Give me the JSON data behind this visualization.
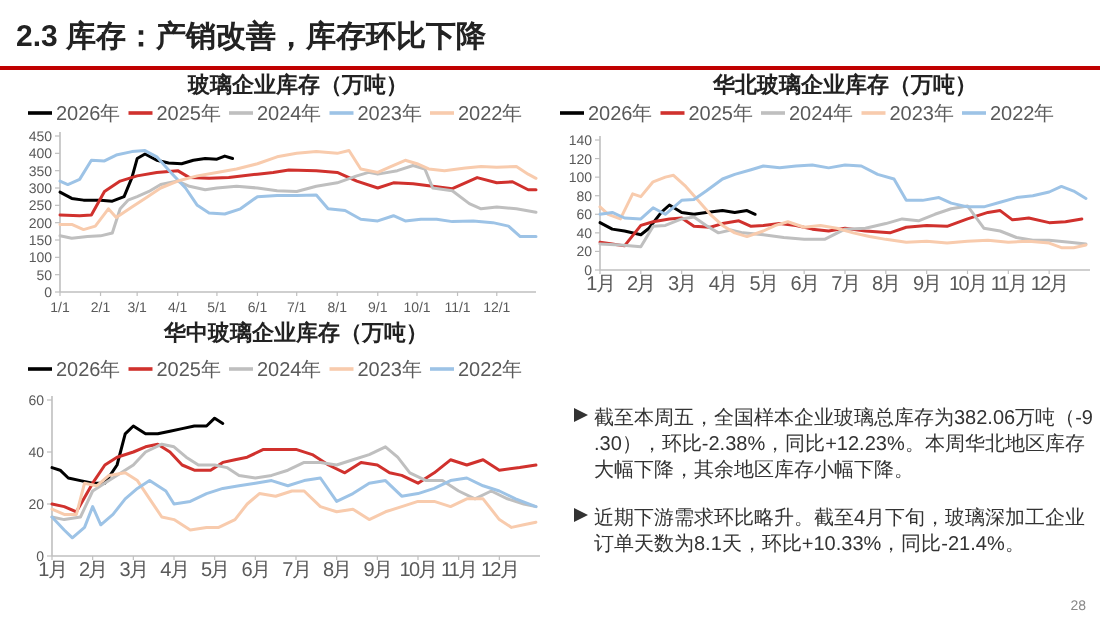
{
  "chart_data": [
    {
      "type": "line",
      "title": "玻璃企业库存（万吨）",
      "legend": "top",
      "grid": false,
      "xlim": [
        "--01-01",
        "--12-31"
      ],
      "xticks": [
        {
          "value": "--01-01",
          "label": "1/1"
        },
        {
          "value": "--02-01",
          "label": "2/1"
        },
        {
          "value": "--03-01",
          "label": "3/1"
        },
        {
          "value": "--04-01",
          "label": "4/1"
        },
        {
          "value": "--05-01",
          "label": "5/1"
        },
        {
          "value": "--06-01",
          "label": "6/1"
        },
        {
          "value": "--07-01",
          "label": "7/1"
        },
        {
          "value": "--08-01",
          "label": "8/1"
        },
        {
          "value": "--09-01",
          "label": "9/1"
        },
        {
          "value": "--10-01",
          "label": "10/1"
        },
        {
          "value": "--11-01",
          "label": "11/1"
        },
        {
          "value": "--12-01",
          "label": "12/1"
        }
      ],
      "ylim": [
        0,
        450
      ],
      "yticks": [
        0,
        50,
        100,
        150,
        200,
        250,
        300,
        350,
        400,
        450
      ],
      "series": [
        {
          "name": "2026年",
          "color": "#000000",
          "x": [
            "--01-01",
            "--01-10",
            "--01-19",
            "--02-01",
            "--02-10",
            "--02-19",
            "--02-25",
            "--03-01",
            "--03-07",
            "--03-16",
            "--03-25",
            "--04-04",
            "--04-13",
            "--04-22",
            "--05-01",
            "--05-07",
            "--05-13"
          ],
          "values": [
            288,
            270,
            265,
            265,
            262,
            275,
            330,
            385,
            398,
            380,
            372,
            370,
            380,
            385,
            383,
            392,
            385
          ]
        },
        {
          "name": "2025年",
          "color": "#d0312d",
          "x": [
            "--01-01",
            "--01-16",
            "--01-25",
            "--02-04",
            "--02-16",
            "--03-01",
            "--03-16",
            "--04-01",
            "--04-10",
            "--04-25",
            "--05-10",
            "--06-01",
            "--06-13",
            "--06-25",
            "--07-16",
            "--08-01",
            "--08-16",
            "--09-01",
            "--09-13",
            "--09-28",
            "--10-13",
            "--10-28",
            "--11-10",
            "--11-16",
            "--12-01",
            "--12-13",
            "--12-25",
            "--12-31"
          ],
          "values": [
            222,
            220,
            222,
            290,
            320,
            335,
            345,
            350,
            330,
            328,
            330,
            340,
            345,
            352,
            350,
            345,
            320,
            300,
            315,
            312,
            305,
            298,
            320,
            330,
            315,
            318,
            295,
            295
          ]
        },
        {
          "name": "2024年",
          "color": "#bfbfbf",
          "x": [
            "--01-01",
            "--01-10",
            "--01-22",
            "--02-01",
            "--02-10",
            "--02-16",
            "--02-22",
            "--03-01",
            "--03-10",
            "--03-19",
            "--04-01",
            "--04-10",
            "--04-22",
            "--05-01",
            "--05-16",
            "--06-01",
            "--06-16",
            "--07-01",
            "--07-16",
            "--08-01",
            "--08-16",
            "--08-25",
            "--09-01",
            "--09-16",
            "--09-28",
            "--10-07",
            "--10-13",
            "--10-28",
            "--11-10",
            "--11-19",
            "--12-01",
            "--12-16",
            "--12-31"
          ],
          "values": [
            162,
            155,
            160,
            162,
            170,
            240,
            265,
            275,
            290,
            310,
            320,
            305,
            295,
            300,
            305,
            300,
            292,
            290,
            305,
            315,
            335,
            345,
            340,
            350,
            365,
            355,
            300,
            292,
            255,
            240,
            245,
            240,
            230
          ]
        },
        {
          "name": "2023年",
          "color": "#9dc3e6",
          "x": [
            "--01-01",
            "--01-07",
            "--01-16",
            "--01-25",
            "--02-04",
            "--02-13",
            "--02-25",
            "--03-07",
            "--03-16",
            "--03-28",
            "--04-07",
            "--04-16",
            "--04-25",
            "--05-07",
            "--05-19",
            "--06-01",
            "--06-16",
            "--07-01",
            "--07-16",
            "--07-25",
            "--08-07",
            "--08-19",
            "--09-01",
            "--09-13",
            "--09-22",
            "--10-04",
            "--10-16",
            "--10-28",
            "--11-13",
            "--11-28",
            "--12-10",
            "--12-19",
            "--12-28",
            "--12-31"
          ],
          "values": [
            320,
            310,
            325,
            380,
            378,
            395,
            405,
            408,
            390,
            340,
            300,
            250,
            228,
            225,
            240,
            275,
            278,
            278,
            280,
            240,
            235,
            210,
            205,
            220,
            205,
            210,
            210,
            203,
            205,
            200,
            190,
            160,
            160,
            160
          ]
        },
        {
          "name": "2022年",
          "color": "#f8cbad",
          "x": [
            "--01-01",
            "--01-10",
            "--01-19",
            "--01-28",
            "--02-07",
            "--02-13",
            "--02-25",
            "--03-07",
            "--03-19",
            "--04-01",
            "--04-16",
            "--05-01",
            "--05-16",
            "--06-01",
            "--06-16",
            "--07-01",
            "--07-16",
            "--08-01",
            "--08-10",
            "--08-19",
            "--09-01",
            "--09-10",
            "--09-22",
            "--10-01",
            "--10-10",
            "--10-22",
            "--11-07",
            "--11-19",
            "--12-01",
            "--12-16",
            "--12-25",
            "--12-31"
          ],
          "values": [
            195,
            195,
            180,
            190,
            240,
            215,
            245,
            270,
            300,
            320,
            335,
            345,
            355,
            370,
            390,
            400,
            405,
            400,
            408,
            355,
            345,
            360,
            380,
            370,
            355,
            350,
            358,
            362,
            360,
            362,
            340,
            328
          ]
        }
      ]
    },
    {
      "type": "line",
      "title": "华北玻璃企业库存（万吨）",
      "legend": "top",
      "grid": false,
      "xlim": [
        1,
        13
      ],
      "xticks": [
        {
          "value": 1,
          "label": "1月"
        },
        {
          "value": 2,
          "label": "2月"
        },
        {
          "value": 3,
          "label": "3月"
        },
        {
          "value": 4,
          "label": "4月"
        },
        {
          "value": 5,
          "label": "5月"
        },
        {
          "value": 6,
          "label": "6月"
        },
        {
          "value": 7,
          "label": "7月"
        },
        {
          "value": 8,
          "label": "8月"
        },
        {
          "value": 9,
          "label": "9月"
        },
        {
          "value": 10,
          "label": "10月"
        },
        {
          "value": 11,
          "label": "11月"
        },
        {
          "value": 12,
          "label": "12月"
        }
      ],
      "ylim": [
        0,
        140
      ],
      "yticks": [
        0,
        20,
        40,
        60,
        80,
        100,
        120,
        140
      ],
      "series": [
        {
          "name": "2026年",
          "color": "#000000",
          "x": [
            1.0,
            1.3,
            1.6,
            2.0,
            2.2,
            2.5,
            2.7,
            3.0,
            3.3,
            3.6,
            4.0,
            4.3,
            4.6,
            4.8
          ],
          "values": [
            51,
            44,
            42,
            38,
            45,
            62,
            70,
            62,
            60,
            62,
            64,
            62,
            64,
            60
          ]
        },
        {
          "name": "2025年",
          "color": "#d0312d",
          "x": [
            1.0,
            1.3,
            1.6,
            2.0,
            2.3,
            2.7,
            3.0,
            3.3,
            3.7,
            4.0,
            4.4,
            4.7,
            5.0,
            5.4,
            5.8,
            6.2,
            6.6,
            7.0,
            7.5,
            8.1,
            8.5,
            9.0,
            9.5,
            10.0,
            10.5,
            10.8,
            11.1,
            11.5,
            12.0,
            12.4,
            12.8
          ],
          "values": [
            30,
            28,
            26,
            48,
            52,
            55,
            56,
            47,
            46,
            50,
            53,
            47,
            48,
            50,
            48,
            44,
            42,
            45,
            42,
            40,
            46,
            48,
            47,
            55,
            62,
            64,
            54,
            56,
            51,
            52,
            55
          ]
        },
        {
          "name": "2024年",
          "color": "#bfbfbf",
          "x": [
            1.0,
            1.5,
            2.0,
            2.3,
            2.6,
            3.0,
            3.3,
            3.6,
            3.9,
            4.2,
            4.5,
            5.0,
            5.5,
            6.0,
            6.5,
            7.0,
            7.5,
            8.0,
            8.4,
            8.8,
            9.2,
            9.6,
            10.0,
            10.4,
            10.8,
            11.2,
            11.6,
            12.0,
            12.5,
            12.9
          ],
          "values": [
            28,
            27,
            25,
            47,
            48,
            55,
            57,
            48,
            40,
            43,
            40,
            38,
            35,
            33,
            33,
            44,
            45,
            50,
            55,
            53,
            60,
            66,
            69,
            45,
            42,
            35,
            32,
            32,
            30,
            28
          ]
        },
        {
          "name": "2023年",
          "color": "#f8cbad",
          "x": [
            1.0,
            1.2,
            1.5,
            1.8,
            2.0,
            2.3,
            2.6,
            2.8,
            3.1,
            3.4,
            3.7,
            4.0,
            4.3,
            4.6,
            5.0,
            5.3,
            5.6,
            6.0,
            6.4,
            6.8,
            7.2,
            7.6,
            8.0,
            8.5,
            9.0,
            9.5,
            10.0,
            10.5,
            11.0,
            11.5,
            12.0,
            12.3,
            12.6,
            12.9
          ],
          "values": [
            68,
            60,
            55,
            82,
            79,
            95,
            100,
            102,
            90,
            75,
            60,
            48,
            40,
            36,
            42,
            48,
            52,
            46,
            48,
            45,
            40,
            36,
            33,
            30,
            31,
            29,
            31,
            32,
            30,
            31,
            29,
            24,
            24,
            27
          ]
        },
        {
          "name": "2022年",
          "color": "#9dc3e6",
          "x": [
            1.0,
            1.3,
            1.6,
            2.0,
            2.3,
            2.6,
            3.0,
            3.3,
            3.6,
            4.0,
            4.3,
            4.7,
            5.0,
            5.4,
            5.8,
            6.2,
            6.6,
            7.0,
            7.4,
            7.8,
            8.2,
            8.5,
            8.9,
            9.3,
            9.6,
            10.0,
            10.4,
            10.8,
            11.2,
            11.6,
            12.0,
            12.3,
            12.6,
            12.9
          ],
          "values": [
            60,
            62,
            56,
            55,
            67,
            60,
            75,
            76,
            85,
            98,
            103,
            108,
            112,
            110,
            112,
            113,
            110,
            113,
            112,
            103,
            98,
            75,
            75,
            78,
            72,
            68,
            68,
            73,
            78,
            80,
            84,
            90,
            85,
            77
          ]
        }
      ]
    },
    {
      "type": "line",
      "title": "华中玻璃企业库存（万吨）",
      "legend": "top",
      "grid": false,
      "xlim": [
        1,
        13
      ],
      "xticks": [
        {
          "value": 1,
          "label": "1月"
        },
        {
          "value": 2,
          "label": "2月"
        },
        {
          "value": 3,
          "label": "3月"
        },
        {
          "value": 4,
          "label": "4月"
        },
        {
          "value": 5,
          "label": "5月"
        },
        {
          "value": 6,
          "label": "6月"
        },
        {
          "value": 7,
          "label": "7月"
        },
        {
          "value": 8,
          "label": "8月"
        },
        {
          "value": 9,
          "label": "9月"
        },
        {
          "value": 10,
          "label": "10月"
        },
        {
          "value": 11,
          "label": "11月"
        },
        {
          "value": 12,
          "label": "12月"
        }
      ],
      "ylim": [
        0,
        60
      ],
      "yticks": [
        0,
        20,
        40,
        60
      ],
      "series": [
        {
          "name": "2026年",
          "color": "#000000",
          "x": [
            1.0,
            1.2,
            1.4,
            1.7,
            2.0,
            2.3,
            2.6,
            2.8,
            3.0,
            3.3,
            3.6,
            3.9,
            4.2,
            4.5,
            4.8,
            5.0,
            5.2
          ],
          "values": [
            34,
            33,
            30,
            29,
            28,
            28,
            35,
            47,
            50,
            47,
            47,
            48,
            49,
            50,
            50,
            53,
            51
          ]
        },
        {
          "name": "2025年",
          "color": "#d0312d",
          "x": [
            1.0,
            1.3,
            1.6,
            2.0,
            2.3,
            2.6,
            3.0,
            3.3,
            3.6,
            3.9,
            4.2,
            4.5,
            4.9,
            5.2,
            5.5,
            5.8,
            6.2,
            6.6,
            7.0,
            7.4,
            7.8,
            8.2,
            8.6,
            9.0,
            9.3,
            9.6,
            10.0,
            10.4,
            10.8,
            11.2,
            11.6,
            12.0,
            12.5,
            12.9
          ],
          "values": [
            20,
            19,
            17,
            28,
            35,
            38,
            40,
            42,
            43,
            40,
            35,
            33,
            33,
            36,
            37,
            38,
            41,
            41,
            41,
            39,
            35,
            32,
            36,
            35,
            32,
            31,
            28,
            32,
            37,
            35,
            37,
            33,
            34,
            35
          ]
        },
        {
          "name": "2024年",
          "color": "#bfbfbf",
          "x": [
            1.0,
            1.3,
            1.7,
            2.0,
            2.4,
            2.7,
            3.0,
            3.3,
            3.7,
            4.0,
            4.3,
            4.6,
            5.0,
            5.3,
            5.6,
            6.0,
            6.4,
            6.8,
            7.2,
            7.6,
            8.0,
            8.4,
            8.8,
            9.2,
            9.5,
            9.8,
            10.2,
            10.6,
            11.0,
            11.4,
            11.8,
            12.2,
            12.6,
            12.9
          ],
          "values": [
            15,
            14,
            15,
            25,
            29,
            32,
            35,
            40,
            43,
            42,
            38,
            35,
            35,
            34,
            31,
            30,
            31,
            33,
            36,
            36,
            35,
            37,
            39,
            42,
            38,
            32,
            29,
            29,
            25,
            22,
            25,
            22,
            20,
            19
          ]
        },
        {
          "name": "2023年",
          "color": "#f8cbad",
          "x": [
            1.0,
            1.3,
            1.6,
            1.8,
            2.1,
            2.4,
            2.8,
            3.1,
            3.4,
            3.7,
            4.0,
            4.4,
            4.8,
            5.1,
            5.5,
            5.8,
            6.1,
            6.5,
            6.9,
            7.2,
            7.6,
            8.0,
            8.4,
            8.8,
            9.2,
            9.6,
            10.0,
            10.4,
            10.8,
            11.2,
            11.6,
            12.0,
            12.3,
            12.6,
            12.9
          ],
          "values": [
            18,
            16,
            16,
            28,
            27,
            31,
            32,
            29,
            22,
            15,
            14,
            10,
            11,
            11,
            14,
            20,
            24,
            23,
            25,
            25,
            19,
            17,
            18,
            14,
            17,
            19,
            21,
            21,
            19,
            22,
            22,
            14,
            11,
            12,
            13
          ]
        },
        {
          "name": "2022年",
          "color": "#9dc3e6",
          "x": [
            1.0,
            1.3,
            1.5,
            1.8,
            2.0,
            2.2,
            2.5,
            2.8,
            3.1,
            3.4,
            3.8,
            4.0,
            4.4,
            4.8,
            5.2,
            5.6,
            6.0,
            6.4,
            6.8,
            7.2,
            7.6,
            8.0,
            8.4,
            8.8,
            9.2,
            9.6,
            10.0,
            10.4,
            10.8,
            11.2,
            11.6,
            12.0,
            12.4,
            12.9
          ],
          "values": [
            15,
            10,
            7,
            11,
            19,
            12,
            16,
            22,
            26,
            29,
            25,
            20,
            21,
            24,
            26,
            27,
            28,
            29,
            27,
            29,
            30,
            21,
            24,
            28,
            29,
            23,
            24,
            26,
            29,
            30,
            27,
            25,
            22,
            19
          ]
        }
      ]
    },
    {
      "type": "other",
      "title": "2.3 库存：产销改善，库存环比下降",
      "annotations": [
        "截至本周五，全国样本企业玻璃总库存为382.06万吨（-9.30），环比-2.38%，同比+12.23%。本周华北地区库存大幅下降，其余地区库存小幅下降。",
        "近期下游需求环比略升。截至4月下旬，玻璃深加工企业订单天数为8.1天，环比+10.33%，同比-21.4%。",
        "28"
      ]
    }
  ]
}
